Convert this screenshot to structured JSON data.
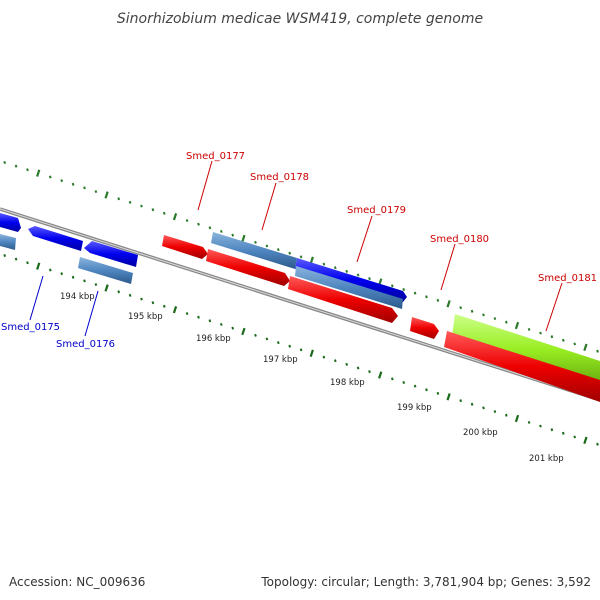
{
  "title": "Sinorhizobium medicae WSM419, complete genome",
  "footer": {
    "accession": "Accession: NC_009636",
    "summary": "Topology: circular; Length: 3,781,904 bp; Genes: 3,592"
  },
  "colors": {
    "forward_cds": "#ff0000",
    "reverse_cds": "#0000ff",
    "steel_cds": "#4f86c0",
    "lime_cds": "#99ee22",
    "backbone": "#888888",
    "tick_outer": "#2a7a2a",
    "tick_inner": "#1a6a1a",
    "label_red": "#cc0000",
    "label_blue": "#0000cc"
  },
  "kbp_labels": [
    "194 kbp",
    "195 kbp",
    "196 kbp",
    "197 kbp",
    "198 kbp",
    "199 kbp",
    "200 kbp",
    "201 kbp"
  ],
  "gene_labels": [
    {
      "name": "Smed_0175",
      "color": "label_blue"
    },
    {
      "name": "Smed_0176",
      "color": "label_blue"
    },
    {
      "name": "Smed_0177",
      "color": "label_red"
    },
    {
      "name": "Smed_0178",
      "color": "label_red"
    },
    {
      "name": "Smed_0179",
      "color": "label_red"
    },
    {
      "name": "Smed_0180",
      "color": "label_red"
    },
    {
      "name": "Smed_0181",
      "color": "label_red"
    }
  ]
}
